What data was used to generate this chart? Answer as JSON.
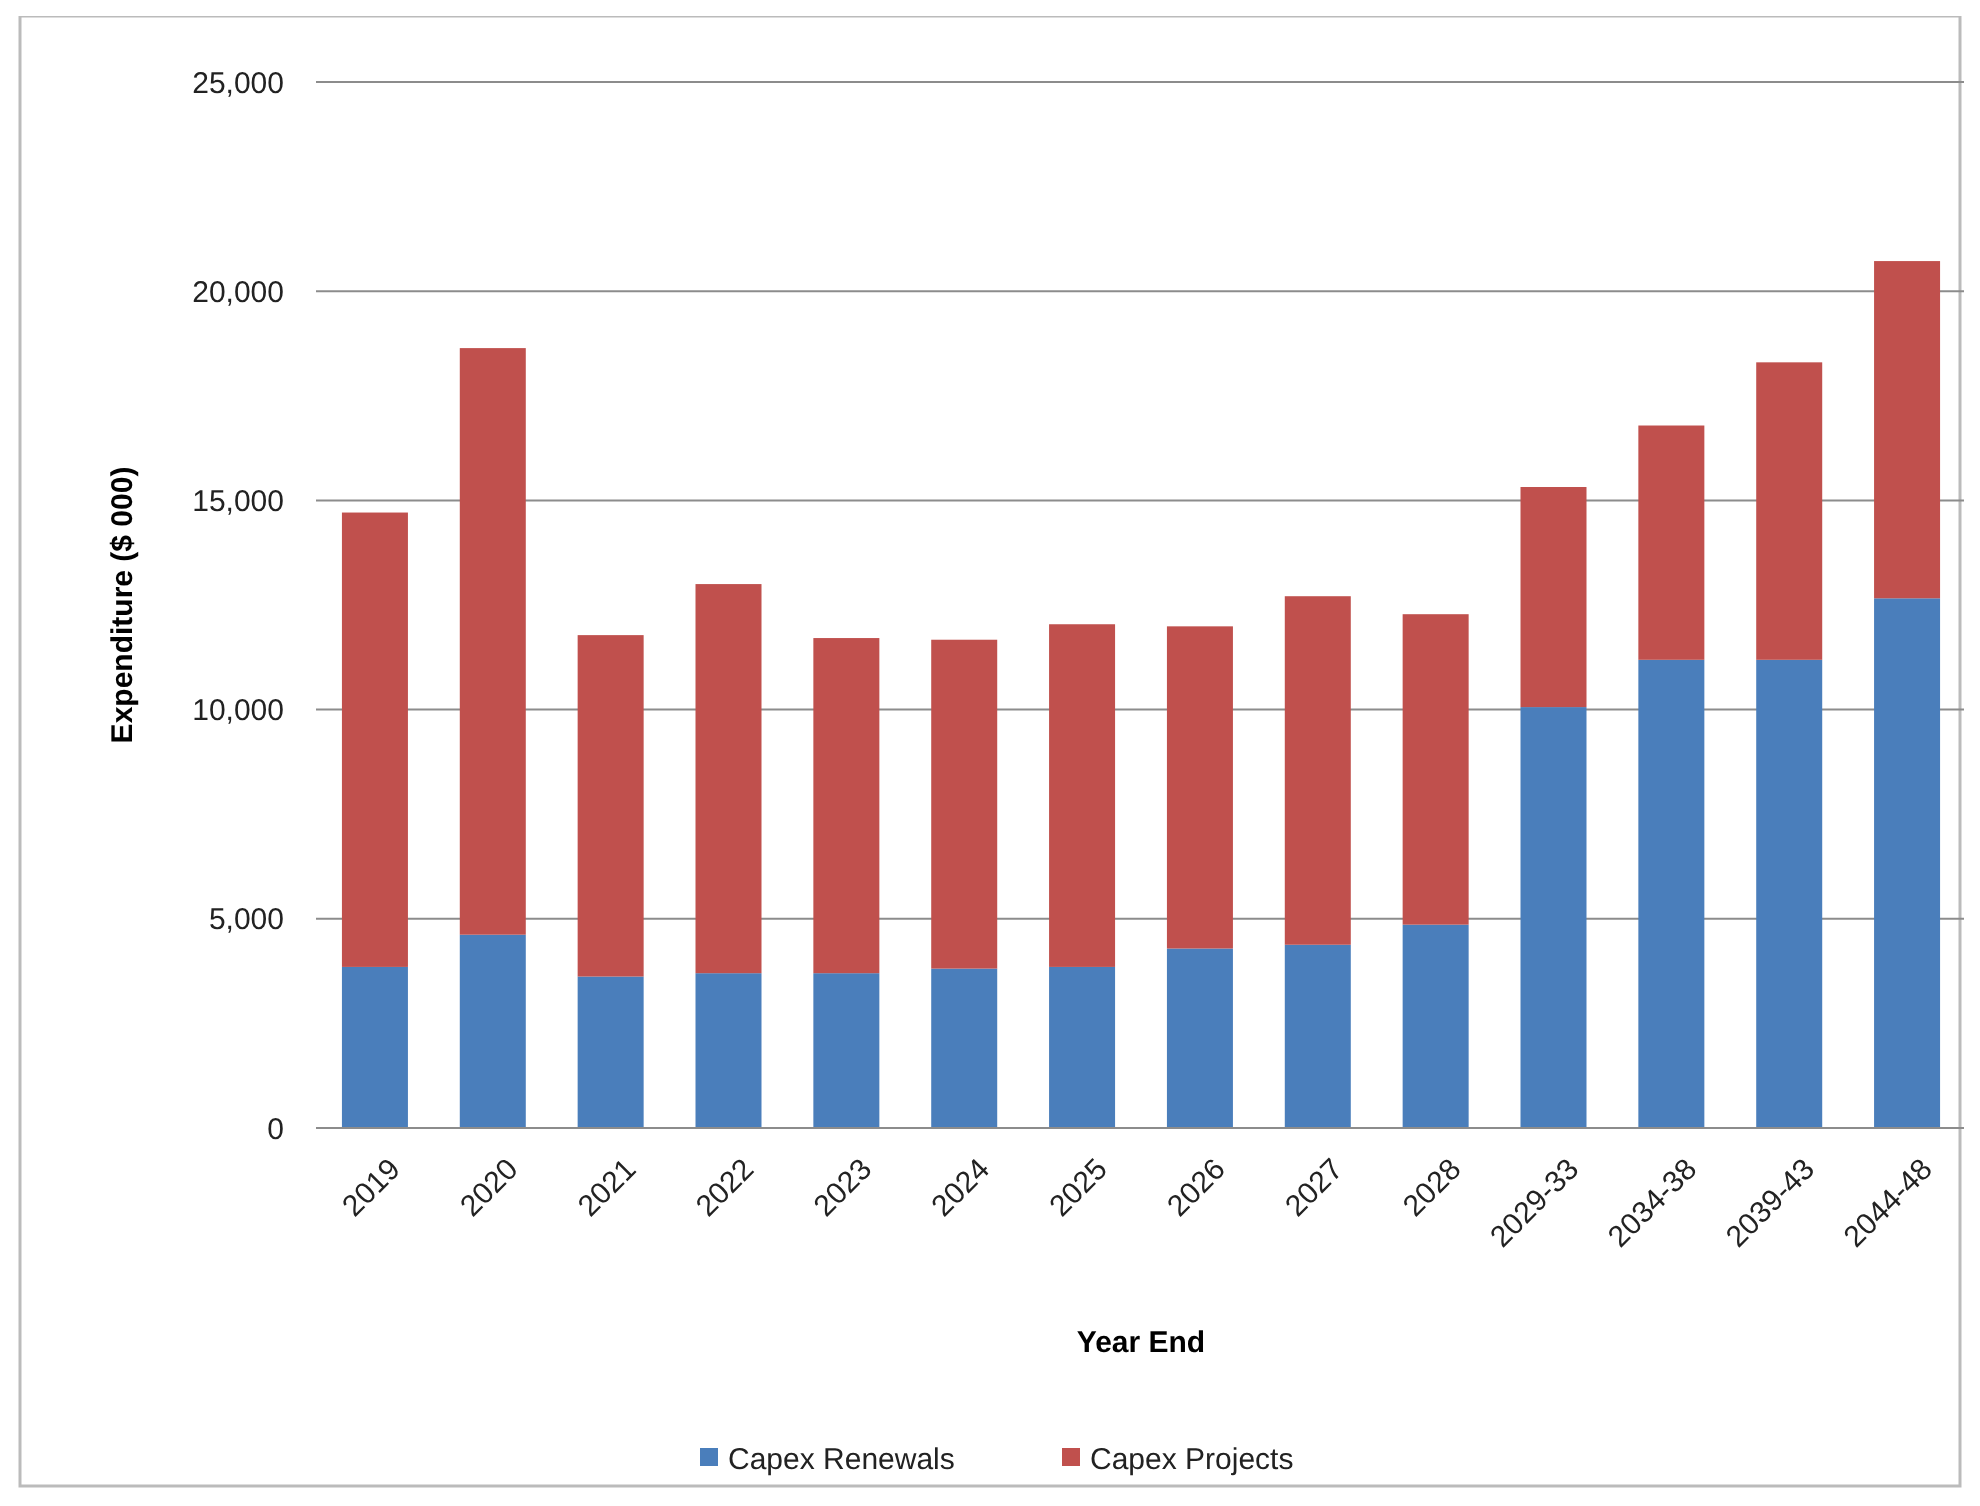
{
  "chart_data": {
    "type": "bar",
    "stacked": true,
    "xlabel": "Year End",
    "ylabel": "Expenditure ($ 000)",
    "categories": [
      "2019",
      "2020",
      "2021",
      "2022",
      "2023",
      "2024",
      "2025",
      "2026",
      "2027",
      "2028",
      "2029-33",
      "2034-38",
      "2039-43",
      "2044-48"
    ],
    "series": [
      {
        "name": "Capex Renewals",
        "color": "#4a7ebb",
        "values": [
          3850,
          4620,
          3620,
          3700,
          3700,
          3810,
          3850,
          4290,
          4380,
          4860,
          10060,
          11190,
          11190,
          12660
        ]
      },
      {
        "name": "Capex Projects",
        "color": "#c0504d",
        "values": [
          10860,
          14020,
          8160,
          9300,
          8010,
          7860,
          8190,
          7700,
          8330,
          7420,
          5260,
          5600,
          7110,
          8060
        ]
      }
    ],
    "ylim": [
      0,
      25000
    ],
    "yticks": [
      {
        "value": 0,
        "label": "0"
      },
      {
        "value": 5000,
        "label": "5,000"
      },
      {
        "value": 10000,
        "label": "10,000"
      },
      {
        "value": 15000,
        "label": "15,000"
      },
      {
        "value": 20000,
        "label": "20,000"
      },
      {
        "value": 25000,
        "label": "25,000"
      }
    ],
    "grid": "y",
    "legend": "bottom"
  }
}
